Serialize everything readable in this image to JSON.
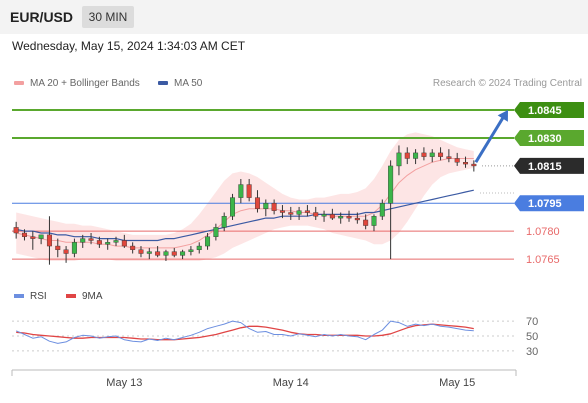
{
  "header": {
    "symbol": "EUR/USD",
    "timeframe": "30 MIN"
  },
  "datetime": "Wednesday, May 15, 2024 1:34:03 AM CET",
  "legend": {
    "ma20": "MA 20 + Bollinger Bands",
    "ma50": "MA 50",
    "credit": "Research © 2024 Trading Central"
  },
  "rsi_legend": {
    "rsi": "RSI",
    "ma": "9MA"
  },
  "colors": {
    "up": "#3bb54a",
    "down": "#e0463c",
    "green_line": "#5aa82e",
    "blue_line": "#4a7de0",
    "red_line": "#e86a6a",
    "bb_fill": "#fde2e2",
    "ma20": "#f3a0a0",
    "ma50": "#3b5aa3",
    "arrow": "#3b6fc4",
    "rsi": "#6d8fe0",
    "rsi_ma": "#e04545"
  },
  "chart_data": [
    {
      "type": "candlestick",
      "title": "EUR/USD",
      "x_ticks": [
        "May 13",
        "May 14",
        "May 15"
      ],
      "y_range": [
        1.0757,
        1.0852
      ],
      "levels": [
        {
          "value": 1.0845,
          "label": "1.0845",
          "style": "target",
          "color": "#5aa82e"
        },
        {
          "value": 1.083,
          "label": "1.0830",
          "style": "resistance",
          "color": "#5aa82e"
        },
        {
          "value": 1.0815,
          "label": "1.0815",
          "style": "current-price",
          "color": "#333333"
        },
        {
          "value": 1.0795,
          "label": "1.0795",
          "style": "pivot",
          "color": "#4a7de0"
        },
        {
          "value": 1.078,
          "label": "1.0780",
          "style": "support",
          "color": "#e86a6a"
        },
        {
          "value": 1.0765,
          "label": "1.0765",
          "style": "support",
          "color": "#e86a6a"
        }
      ],
      "ohlc": [
        [
          1.0782,
          1.0785,
          1.0776,
          1.0779
        ],
        [
          1.0779,
          1.0781,
          1.0775,
          1.0777
        ],
        [
          1.0777,
          1.078,
          1.077,
          1.0776
        ],
        [
          1.0776,
          1.0778,
          1.0773,
          1.0778
        ],
        [
          1.0778,
          1.0788,
          1.0762,
          1.0772
        ],
        [
          1.0772,
          1.0776,
          1.0766,
          1.077
        ],
        [
          1.077,
          1.0772,
          1.0763,
          1.0768
        ],
        [
          1.0768,
          1.0776,
          1.0766,
          1.0774
        ],
        [
          1.0774,
          1.0778,
          1.0771,
          1.0776
        ],
        [
          1.0776,
          1.0779,
          1.0773,
          1.0775
        ],
        [
          1.0775,
          1.0777,
          1.0771,
          1.0773
        ],
        [
          1.0773,
          1.0776,
          1.077,
          1.0774
        ],
        [
          1.0774,
          1.0777,
          1.0772,
          1.0775
        ],
        [
          1.0775,
          1.0778,
          1.0771,
          1.0772
        ],
        [
          1.0772,
          1.0774,
          1.0768,
          1.077
        ],
        [
          1.077,
          1.0772,
          1.0766,
          1.0768
        ],
        [
          1.0768,
          1.0771,
          1.0765,
          1.0769
        ],
        [
          1.0769,
          1.0772,
          1.0766,
          1.0767
        ],
        [
          1.0767,
          1.077,
          1.0764,
          1.0769
        ],
        [
          1.0769,
          1.0771,
          1.0766,
          1.0767
        ],
        [
          1.0767,
          1.077,
          1.0765,
          1.0769
        ],
        [
          1.0769,
          1.0772,
          1.0767,
          1.077
        ],
        [
          1.077,
          1.0774,
          1.0768,
          1.0772
        ],
        [
          1.0772,
          1.0779,
          1.077,
          1.0777
        ],
        [
          1.0777,
          1.0784,
          1.0775,
          1.0782
        ],
        [
          1.0782,
          1.079,
          1.078,
          1.0788
        ],
        [
          1.0788,
          1.08,
          1.0786,
          1.0798
        ],
        [
          1.0798,
          1.0808,
          1.0795,
          1.0805
        ],
        [
          1.0805,
          1.0808,
          1.0796,
          1.0798
        ],
        [
          1.0798,
          1.0802,
          1.079,
          1.0792
        ],
        [
          1.0792,
          1.0797,
          1.0788,
          1.0795
        ],
        [
          1.0795,
          1.0797,
          1.0789,
          1.0791
        ],
        [
          1.0791,
          1.0794,
          1.0787,
          1.079
        ],
        [
          1.079,
          1.0793,
          1.0786,
          1.0789
        ],
        [
          1.0789,
          1.0793,
          1.0786,
          1.0791
        ],
        [
          1.0791,
          1.0794,
          1.0788,
          1.079
        ],
        [
          1.079,
          1.0793,
          1.0786,
          1.0788
        ],
        [
          1.0788,
          1.0791,
          1.0785,
          1.0789
        ],
        [
          1.0789,
          1.0792,
          1.0786,
          1.0787
        ],
        [
          1.0787,
          1.079,
          1.0784,
          1.0788
        ],
        [
          1.0788,
          1.0791,
          1.0785,
          1.0787
        ],
        [
          1.0787,
          1.079,
          1.0784,
          1.0786
        ],
        [
          1.0786,
          1.0789,
          1.0781,
          1.0783
        ],
        [
          1.0783,
          1.0789,
          1.078,
          1.0788
        ],
        [
          1.0788,
          1.0797,
          1.0786,
          1.0795
        ],
        [
          1.0795,
          1.0818,
          1.0765,
          1.0815
        ],
        [
          1.0815,
          1.0826,
          1.081,
          1.0822
        ],
        [
          1.0822,
          1.0825,
          1.0816,
          1.0819
        ],
        [
          1.0819,
          1.0824,
          1.0816,
          1.0822
        ],
        [
          1.0822,
          1.0825,
          1.0818,
          1.082
        ],
        [
          1.082,
          1.0824,
          1.0817,
          1.0822
        ],
        [
          1.0822,
          1.0825,
          1.0818,
          1.082
        ],
        [
          1.082,
          1.0824,
          1.0817,
          1.0819
        ],
        [
          1.0819,
          1.0822,
          1.0815,
          1.0817
        ],
        [
          1.0817,
          1.082,
          1.0814,
          1.0816
        ],
        [
          1.0816,
          1.0818,
          1.0812,
          1.0815
        ]
      ],
      "ma20": [
        1.0779,
        1.0778,
        1.0777,
        1.0776,
        1.0775,
        1.0775,
        1.0774,
        1.0774,
        1.0774,
        1.0774,
        1.0773,
        1.0773,
        1.0772,
        1.0772,
        1.0771,
        1.0771,
        1.0771,
        1.0771,
        1.0771,
        1.0771,
        1.0772,
        1.0773,
        1.0775,
        1.0778,
        1.0781,
        1.0785,
        1.0789,
        1.0791,
        1.0792,
        1.0792,
        1.0792,
        1.0792,
        1.0791,
        1.0791,
        1.079,
        1.079,
        1.0789,
        1.0789,
        1.0788,
        1.0788,
        1.0788,
        1.0788,
        1.0788,
        1.079,
        1.0794,
        1.08,
        1.0806,
        1.081,
        1.0813,
        1.0815,
        1.0817,
        1.0818,
        1.0819,
        1.0819,
        1.0819,
        1.0819
      ],
      "ma50": [
        1.0781,
        1.078,
        1.078,
        1.0779,
        1.0779,
        1.0778,
        1.0778,
        1.0777,
        1.0777,
        1.0777,
        1.0776,
        1.0776,
        1.0776,
        1.0775,
        1.0775,
        1.0775,
        1.0775,
        1.0775,
        1.0776,
        1.0776,
        1.0777,
        1.0778,
        1.0779,
        1.078,
        1.0781,
        1.0782,
        1.0783,
        1.0784,
        1.0785,
        1.0786,
        1.0787,
        1.0787,
        1.0788,
        1.0788,
        1.0788,
        1.0788,
        1.0789,
        1.0789,
        1.0789,
        1.0789,
        1.0789,
        1.0789,
        1.079,
        1.079,
        1.0791,
        1.0792,
        1.0793,
        1.0794,
        1.0795,
        1.0796,
        1.0797,
        1.0798,
        1.0799,
        1.08,
        1.0801,
        1.0802
      ],
      "bb_upper": [
        1.079,
        1.0789,
        1.0788,
        1.0787,
        1.0786,
        1.0785,
        1.0784,
        1.0784,
        1.0783,
        1.0783,
        1.0782,
        1.0781,
        1.078,
        1.0779,
        1.0778,
        1.0778,
        1.0778,
        1.0778,
        1.0778,
        1.0779,
        1.0781,
        1.0784,
        1.0789,
        1.0795,
        1.0801,
        1.0807,
        1.0811,
        1.0812,
        1.0811,
        1.0809,
        1.0806,
        1.0803,
        1.08,
        1.0798,
        1.0797,
        1.0797,
        1.0798,
        1.0798,
        1.0799,
        1.08,
        1.08,
        1.0801,
        1.0803,
        1.0808,
        1.0815,
        1.0823,
        1.0829,
        1.0832,
        1.0833,
        1.0832,
        1.0831,
        1.0829,
        1.0827,
        1.0825,
        1.0824,
        1.0823
      ],
      "bb_lower": [
        1.0768,
        1.0767,
        1.0766,
        1.0765,
        1.0764,
        1.0764,
        1.0764,
        1.0764,
        1.0765,
        1.0765,
        1.0765,
        1.0765,
        1.0764,
        1.0764,
        1.0764,
        1.0764,
        1.0764,
        1.0764,
        1.0764,
        1.0764,
        1.0764,
        1.0764,
        1.0764,
        1.0765,
        1.0766,
        1.0768,
        1.0771,
        1.0773,
        1.0775,
        1.0777,
        1.0779,
        1.0781,
        1.0782,
        1.0783,
        1.0783,
        1.0783,
        1.0782,
        1.0781,
        1.0779,
        1.0778,
        1.0777,
        1.0776,
        1.0775,
        1.0773,
        1.0773,
        1.0775,
        1.0779,
        1.0785,
        1.0792,
        1.0799,
        1.0805,
        1.0809,
        1.0811,
        1.0812,
        1.0813,
        1.0814
      ],
      "forecast_arrow": {
        "from": 1.0817,
        "to": 1.0845
      }
    },
    {
      "type": "line",
      "title": "RSI",
      "y_ticks": [
        70,
        50,
        30
      ],
      "y_range": [
        15,
        85
      ],
      "rsi": [
        57,
        52,
        47,
        49,
        43,
        40,
        42,
        48,
        51,
        50,
        47,
        49,
        50,
        45,
        43,
        42,
        46,
        44,
        47,
        45,
        48,
        51,
        55,
        60,
        63,
        66,
        70,
        68,
        60,
        55,
        56,
        52,
        52,
        50,
        53,
        51,
        49,
        52,
        50,
        52,
        50,
        49,
        45,
        52,
        58,
        70,
        68,
        63,
        66,
        64,
        66,
        63,
        62,
        60,
        58,
        57
      ],
      "rsi_ma": [
        55,
        54,
        52,
        51,
        50,
        49,
        48,
        47,
        47,
        48,
        48,
        48,
        48,
        48,
        47,
        46,
        46,
        45,
        45,
        45,
        46,
        47,
        48,
        50,
        52,
        55,
        58,
        61,
        63,
        63,
        62,
        60,
        58,
        55,
        53,
        52,
        52,
        51,
        51,
        51,
        51,
        51,
        50,
        50,
        51,
        53,
        57,
        61,
        64,
        65,
        66,
        65,
        64,
        63,
        62,
        60
      ]
    }
  ]
}
